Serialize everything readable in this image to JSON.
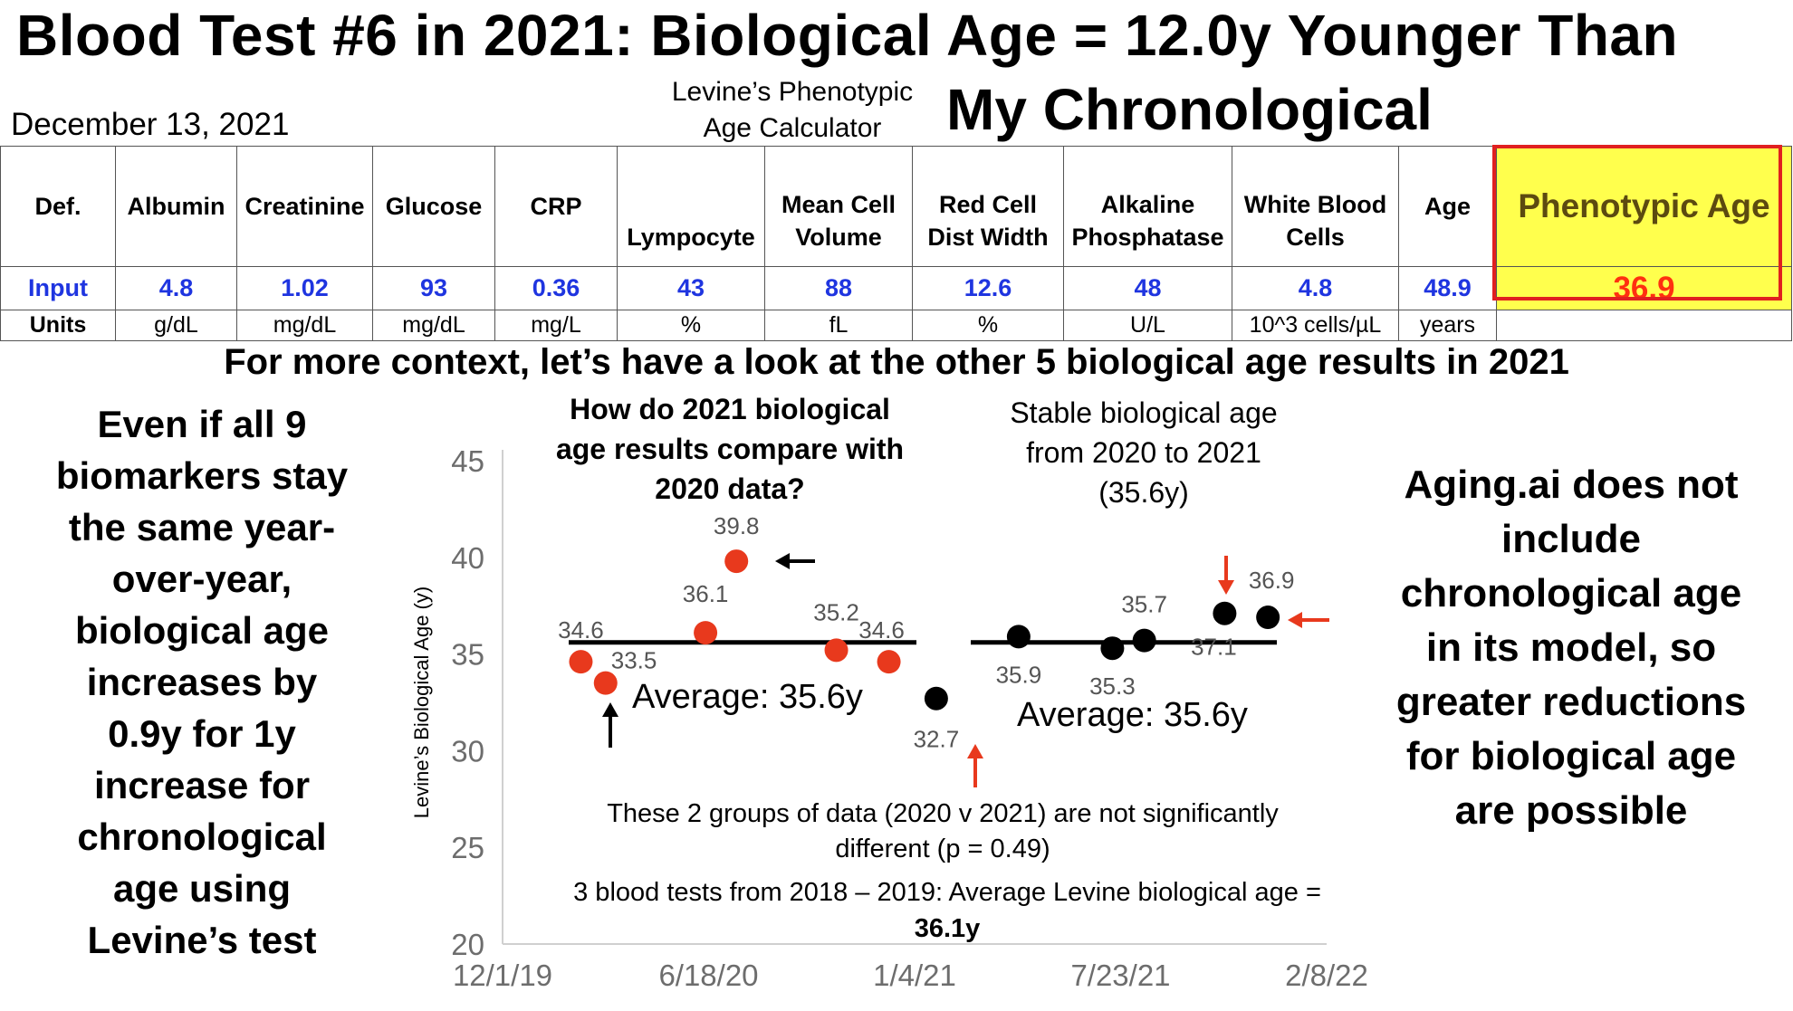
{
  "title": {
    "line1": "Blood Test #6 in 2021: Biological Age = 12.0y Younger Than",
    "line2": "My Chronological"
  },
  "date": "December 13, 2021",
  "calculator": {
    "line1": "Levine’s Phenotypic",
    "line2": "Age Calculator"
  },
  "table": {
    "row_labels": {
      "def": "Def.",
      "input": "Input",
      "units": "Units"
    },
    "columns": [
      {
        "h1": "",
        "h2": "Albumin",
        "value": "4.8",
        "unit": "g/dL"
      },
      {
        "h1": "",
        "h2": "Creatinine",
        "value": "1.02",
        "unit": "mg/dL"
      },
      {
        "h1": "",
        "h2": "Glucose",
        "value": "93",
        "unit": "mg/dL"
      },
      {
        "h1": "",
        "h2": "CRP",
        "value": "0.36",
        "unit": "mg/L"
      },
      {
        "h1": "",
        "h2": "Lympocyte",
        "value": "43",
        "unit": "%"
      },
      {
        "h1": "Mean Cell",
        "h2": "Volume",
        "value": "88",
        "unit": "fL"
      },
      {
        "h1": "Red Cell",
        "h2": "Dist Width",
        "value": "12.6",
        "unit": "%"
      },
      {
        "h1": "Alkaline",
        "h2": "Phosphatase",
        "value": "48",
        "unit": "U/L"
      },
      {
        "h1": "White Blood",
        "h2": "Cells",
        "value": "4.8",
        "unit": "10^3 cells/µL"
      },
      {
        "h1": "",
        "h2": "Age",
        "value": "48.9",
        "unit": "years"
      }
    ],
    "phenotypic": {
      "label": "Phenotypic Age",
      "value": "36.9"
    }
  },
  "context_heading": "For more context, let’s have a look at the other 5 biological age results in 2021",
  "left_note": [
    "Even if all 9",
    "biomarkers stay",
    "the same year-",
    "over-year,",
    "biological age",
    "increases by",
    "0.9y for 1y",
    "increase for",
    "chronological",
    "age using",
    "Levine’s test"
  ],
  "right_note": [
    "Aging.ai does not",
    "include",
    "chronological age",
    "in its model, so",
    "greater reductions",
    "for biological age",
    "are possible"
  ],
  "chart_annotations": {
    "compare_question": [
      "How do 2021 biological",
      "age results compare with",
      "2020 data?"
    ],
    "stable": [
      "Stable biological age",
      "from 2020 to 2021",
      "(35.6y)"
    ],
    "avg_2020": "Average: 35.6y",
    "avg_2021": "Average: 35.6y",
    "significance": [
      "These 2 groups of data (2020 v 2021) are not significantly",
      "different (p = 0.49)"
    ],
    "history": [
      "3 blood tests from 2018 – 2019: Average Levine biological age =",
      "36.1y"
    ]
  },
  "colors": {
    "series_2020": "#e8391d",
    "series_2021": "#000000",
    "input_blue": "#1f35e0",
    "pheno_yellow": "#ffff4d",
    "box_red": "#e02020",
    "arrow_red": "#e8391d"
  },
  "chart_data": {
    "type": "scatter",
    "ylabel": "Levine’s Biological Age (y)",
    "xlabel": "",
    "ylim": [
      20,
      45
    ],
    "yticks": [
      20,
      25,
      30,
      35,
      40,
      45
    ],
    "xlim": [
      "2019-12-01",
      "2022-02-08"
    ],
    "xticks": [
      "12/1/19",
      "6/18/20",
      "1/4/21",
      "7/23/21",
      "2/8/22"
    ],
    "grid": false,
    "series": [
      {
        "color": "#e8391d",
        "points": [
          {
            "x": "2020-02-15",
            "y": 34.6,
            "label": "34.6"
          },
          {
            "x": "2020-03-10",
            "y": 33.5,
            "label": "33.5"
          },
          {
            "x": "2020-06-15",
            "y": 36.1,
            "label": "36.1"
          },
          {
            "x": "2020-07-15",
            "y": 39.8,
            "label": "39.8"
          },
          {
            "x": "2020-10-20",
            "y": 35.2,
            "label": "35.2"
          },
          {
            "x": "2020-12-10",
            "y": 34.6,
            "label": "34.6"
          }
        ],
        "mean": 35.6
      },
      {
        "color": "#000000",
        "points": [
          {
            "x": "2021-01-25",
            "y": 32.7,
            "label": "32.7"
          },
          {
            "x": "2021-04-15",
            "y": 35.9,
            "label": "35.9"
          },
          {
            "x": "2021-07-15",
            "y": 35.3,
            "label": "35.3"
          },
          {
            "x": "2021-08-15",
            "y": 35.7,
            "label": "35.7"
          },
          {
            "x": "2021-11-01",
            "y": 37.1,
            "label": "37.1"
          },
          {
            "x": "2021-12-13",
            "y": 36.9,
            "label": "36.9"
          }
        ],
        "mean": 35.6
      }
    ]
  }
}
